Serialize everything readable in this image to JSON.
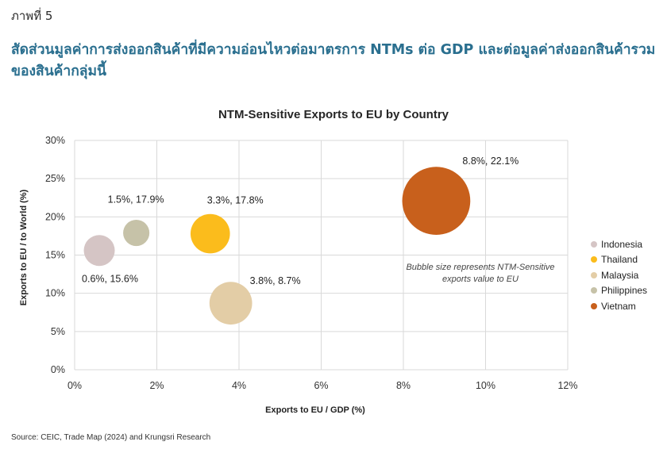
{
  "figure_label": "ภาพที่ 5",
  "figure_title": "สัดส่วนมูลค่าการส่งออกสินค้าที่มีความอ่อนไหวต่อมาตรการ NTMs ต่อ GDP และต่อมูลค่าส่งออกสินค้ารวมของสินค้ากลุ่มนี้",
  "source": "Source: CEIC, Trade Map (2024) and Krungsri Research",
  "chart_data": {
    "type": "scatter",
    "subtype": "bubble",
    "title": "NTM-Sensitive Exports to EU by Country",
    "xlabel": "Exports to EU / GDP (%)",
    "ylabel": "Exports to EU / to World (%)",
    "xlim": [
      0,
      12
    ],
    "ylim": [
      0,
      30
    ],
    "x_ticks": [
      0,
      2,
      4,
      6,
      8,
      10,
      12
    ],
    "x_tick_labels": [
      "0%",
      "2%",
      "4%",
      "6%",
      "8%",
      "10%",
      "12%"
    ],
    "y_ticks": [
      0,
      5,
      10,
      15,
      20,
      25,
      30
    ],
    "y_tick_labels": [
      "0%",
      "5%",
      "10%",
      "15%",
      "20%",
      "25%",
      "30%"
    ],
    "grid": true,
    "legend_position": "right",
    "annotation": "Bubble size represents NTM-Sensitive exports value to EU",
    "series": [
      {
        "name": "Indonesia",
        "x": 0.6,
        "y": 15.6,
        "size": 1.0,
        "color": "#d5c5c5",
        "label": "0.6%, 15.6%"
      },
      {
        "name": "Thailand",
        "x": 3.3,
        "y": 17.8,
        "size": 1.62,
        "color": "#fbbc1c",
        "label": "3.3%, 17.8%"
      },
      {
        "name": "Malaysia",
        "x": 3.8,
        "y": 8.7,
        "size": 1.9,
        "color": "#e3cda6",
        "label": "3.8%, 8.7%"
      },
      {
        "name": "Philippines",
        "x": 1.5,
        "y": 17.9,
        "size": 0.72,
        "color": "#c6c2a8",
        "label": "1.5%, 17.9%"
      },
      {
        "name": "Vietnam",
        "x": 8.8,
        "y": 22.1,
        "size": 4.83,
        "color": "#c8601c",
        "label": "8.8%, 22.1%"
      }
    ]
  }
}
